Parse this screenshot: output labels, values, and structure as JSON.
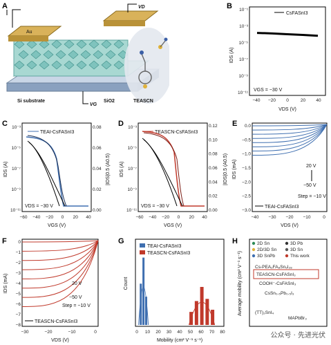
{
  "panels": {
    "A": {
      "letter": "A",
      "vd": "VD",
      "vg": "VG",
      "au": "Au",
      "substrate": "Si substrate",
      "sio2": "SiO2",
      "molecule": "TEASCN"
    },
    "B": {
      "letter": "B",
      "legend": "CsFASnI3",
      "ylabel": "IDS (A)",
      "xlabel": "VDS (V)",
      "note": "VGS = −30 V",
      "yticks": [
        "10⁻¹",
        "10⁻³",
        "10⁻⁵",
        "10⁻⁷",
        "10⁻⁹",
        "10⁻¹¹"
      ],
      "xticks": [
        "−40",
        "−20",
        "0",
        "20",
        "40"
      ]
    },
    "C": {
      "letter": "C",
      "legend": "TEAI-CsFASnI3",
      "ylabel": "IDS (A)",
      "y2label": "|IDS|0.5 (A0.5)",
      "xlabel": "VGS (V)",
      "note": "VDS = −30 V",
      "yticks": [
        "10⁻³",
        "10⁻⁵",
        "10⁻⁷",
        "10⁻⁹",
        "10⁻¹¹"
      ],
      "y2ticks": [
        "0.08",
        "0.06",
        "0.04",
        "0.02",
        "0.00"
      ],
      "xticks": [
        "−60",
        "−40",
        "−20",
        "0",
        "20",
        "40"
      ]
    },
    "D": {
      "letter": "D",
      "legend": "TEASCN-CsFASnI3",
      "ylabel": "IDS (A)",
      "y2label": "|IDS|0.5 (A0.5)",
      "xlabel": "VGS (V)",
      "note": "VDS = −30 V",
      "yticks": [
        "10⁻³",
        "10⁻⁵",
        "10⁻⁷",
        "10⁻⁹",
        "10⁻¹¹"
      ],
      "y2ticks": [
        "0.12",
        "0.10",
        "0.08",
        "0.06",
        "0.04",
        "0.02",
        "0.00"
      ],
      "xticks": [
        "−60",
        "−40",
        "−20",
        "0",
        "20",
        "40"
      ]
    },
    "E": {
      "letter": "E",
      "legend": "TEAI-CsFASnI3",
      "ylabel": "IDS (mA)",
      "xlabel": "VDS (V)",
      "sweep1": "20 V",
      "sweep2": "−50 V",
      "step": "Step = −10 V",
      "yticks": [
        "0.0",
        "−0.5",
        "−1.0",
        "−1.5",
        "−2.0",
        "−2.5",
        "−3.0"
      ],
      "xticks": [
        "−40",
        "−30",
        "−20",
        "−10",
        "0"
      ]
    },
    "F": {
      "letter": "F",
      "legend": "TEASCN-CsFASnI3",
      "ylabel": "IDS (mA)",
      "xlabel": "VDS (V)",
      "sweep1": "20 V",
      "sweep2": "−50 V",
      "step": "Step = −10 V",
      "yticks": [
        "0",
        "−1",
        "−2",
        "−3",
        "−4",
        "−5",
        "−6",
        "−7",
        "−8"
      ],
      "xticks": [
        "−30",
        "−20",
        "−10",
        "0"
      ]
    },
    "G": {
      "letter": "G",
      "legend1": "TEAI-CsFASnI3",
      "legend2": "TEASCN-CsFASnI3",
      "ylabel": "Count",
      "xlabel": "Mobility (cm² V⁻¹ s⁻¹)",
      "xticks": [
        "0",
        "10",
        "20",
        "30",
        "40",
        "50",
        "60",
        "70",
        "80"
      ]
    },
    "H": {
      "letter": "H",
      "ylabel": "Average mobility (cm² V⁻¹ s⁻¹)",
      "legend": [
        "2D Sn",
        "3D Pb",
        "2D/3D Sn",
        "3D Sn",
        "3D SnPb",
        "This work"
      ],
      "labels": [
        "Cs-PEA₂FA₈Sn₉I₂₈",
        "TEASCN-CsFASnI₃",
        "COOH⁻-CsFASnI₃",
        "CsSn₀.₅Pb₀.₅I₃",
        "(TT)₂SnI₄",
        "MAPbBr₃"
      ]
    }
  },
  "chart_data": [
    {
      "panel": "B",
      "type": "line",
      "title": "",
      "xlabel": "VDS (V)",
      "ylabel": "IDS (A)",
      "yscale": "log",
      "xlim": [
        -50,
        50
      ],
      "ylim": [
        1e-12,
        1
      ],
      "series": [
        {
          "name": "CsFASnI3",
          "x": [
            -40,
            -20,
            0,
            20,
            40
          ],
          "y": [
            0.0003,
            0.00025,
            0.0002,
            0.00016,
            0.00012
          ]
        }
      ]
    },
    {
      "panel": "C",
      "type": "line",
      "xlabel": "VGS (V)",
      "ylabel": "IDS (A)",
      "yscale": "log",
      "xlim": [
        -60,
        40
      ],
      "series": [
        {
          "name": "TEAI-CsFASnI3",
          "x": [
            -50,
            -30,
            -10,
            0,
            10,
            20,
            30
          ],
          "y": [
            0.0002,
            0.00015,
            8e-05,
            2e-05,
            1e-08,
            1e-10,
            1e-10
          ]
        }
      ]
    },
    {
      "panel": "D",
      "type": "line",
      "xlabel": "VGS (V)",
      "ylabel": "IDS (A)",
      "yscale": "log",
      "xlim": [
        -60,
        40
      ],
      "series": [
        {
          "name": "TEASCN-CsFASnI3",
          "x": [
            -50,
            -30,
            -10,
            0,
            10,
            20,
            30
          ],
          "y": [
            0.0015,
            0.0012,
            0.0008,
            0.0003,
            1e-08,
            1e-10,
            1e-10
          ]
        }
      ]
    },
    {
      "panel": "E",
      "type": "line",
      "xlabel": "VDS (V)",
      "ylabel": "IDS (mA)",
      "xlim": [
        -40,
        0
      ],
      "ylim": [
        -3,
        0
      ],
      "note": "VGS from 20 V to −50 V, step −10 V"
    },
    {
      "panel": "F",
      "type": "line",
      "xlabel": "VDS (V)",
      "ylabel": "IDS (mA)",
      "xlim": [
        -35,
        0
      ],
      "ylim": [
        -8,
        0
      ],
      "note": "VGS from 20 V to −50 V, step −10 V"
    },
    {
      "panel": "G",
      "type": "bar",
      "xlabel": "Mobility (cm² V⁻¹ s⁻¹)",
      "ylabel": "Count",
      "series": [
        {
          "name": "TEAI-CsFASnI3",
          "x": [
            5,
            7.5,
            10
          ],
          "values": [
            38,
            62,
            26
          ]
        },
        {
          "name": "TEASCN-CsFASnI3",
          "x": [
            52,
            57,
            62,
            67,
            72
          ],
          "values": [
            12,
            22,
            35,
            24,
            14
          ]
        }
      ]
    },
    {
      "panel": "H",
      "type": "scatter",
      "ylabel": "Average mobility (cm² V⁻¹ s⁻¹)",
      "yscale": "log"
    }
  ],
  "watermark": "公众号 · 先进光伏"
}
